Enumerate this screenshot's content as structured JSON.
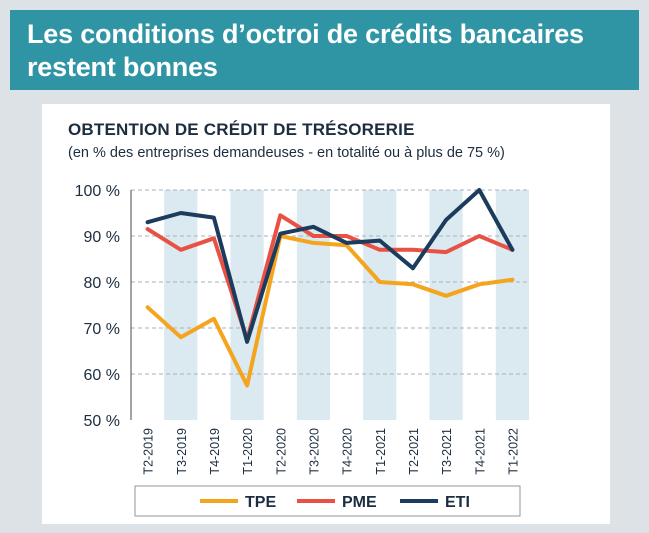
{
  "banner": {
    "line1": "Les conditions d’octroi de crédits bancaires",
    "line2": "restent bonnes"
  },
  "chart_data": {
    "type": "line",
    "title": "OBTENTION DE CRÉDIT DE TRÉSORERIE",
    "subtitle": "(en % des entreprises demandeuses - en totalité ou à plus de 75 %)",
    "categories": [
      "T2-2019",
      "T3-2019",
      "T4-2019",
      "T1-2020",
      "T2-2020",
      "T3-2020",
      "T4-2020",
      "T1-2021",
      "T2-2021",
      "T3-2021",
      "T4-2021",
      "T1-2022"
    ],
    "y_ticks": [
      "100 %",
      "90 %",
      "80 %",
      "70 %",
      "60 %",
      "50 %"
    ],
    "ylim": [
      50,
      100
    ],
    "grid": "horizontal dashed",
    "shaded_columns": "alternating",
    "legend_placement": "bottom",
    "series": [
      {
        "name": "TPE",
        "color": "#f4a41d",
        "values": [
          74.5,
          68,
          72,
          57.5,
          90,
          88.5,
          88,
          80,
          79.5,
          77,
          79.5,
          80.5
        ]
      },
      {
        "name": "PME",
        "color": "#e85143",
        "values": [
          91.5,
          87,
          89.5,
          67.5,
          94.5,
          90,
          90,
          87,
          87,
          86.5,
          90,
          87
        ]
      },
      {
        "name": "ETI",
        "color": "#1b3c5c",
        "values": [
          93,
          95,
          94,
          67,
          90.5,
          92,
          88.5,
          89,
          83,
          93.5,
          100,
          87
        ]
      }
    ]
  }
}
